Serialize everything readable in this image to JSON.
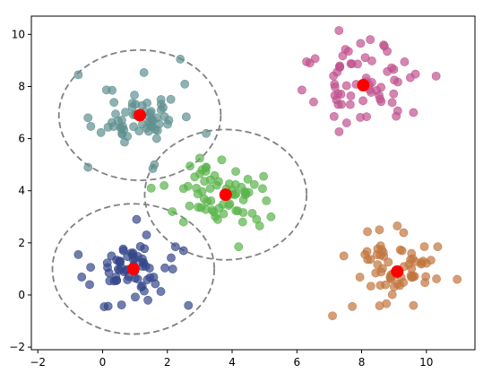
{
  "chart_data": {
    "type": "scatter",
    "title": "",
    "xlabel": "",
    "ylabel": "",
    "xlim": [
      -2.2,
      11.5
    ],
    "ylim": [
      -2.1,
      10.7
    ],
    "xticks": [
      "−2",
      "0",
      "2",
      "4",
      "6",
      "8",
      "10"
    ],
    "xtick_values": [
      -2,
      0,
      2,
      4,
      6,
      8,
      10
    ],
    "yticks": [
      "−2",
      "0",
      "2",
      "4",
      "6",
      "8",
      "10"
    ],
    "ytick_values": [
      -2,
      0,
      2,
      4,
      6,
      8,
      10
    ],
    "grid": false,
    "legend": "none",
    "clusters": [
      {
        "color": "#5f9090",
        "center": [
          1.15,
          6.9
        ],
        "spread": 0.6,
        "count": 60,
        "circle_radius": 2.5,
        "seed": 11,
        "points": [
          [
            -0.75,
            8.45
          ],
          [
            -0.45,
            6.8
          ],
          [
            -0.45,
            4.9
          ],
          [
            2.4,
            9.05
          ],
          [
            3.2,
            6.2
          ],
          [
            1.55,
            4.85
          ],
          [
            1.6,
            5.0
          ]
        ]
      },
      {
        "color": "#c0528f",
        "center": [
          8.05,
          8.05
        ],
        "spread": 0.7,
        "count": 60,
        "circle_radius": 0,
        "seed": 23,
        "points": [
          [
            7.3,
            10.15
          ],
          [
            6.3,
            8.95
          ],
          [
            6.4,
            8.9
          ],
          [
            10.3,
            8.4
          ],
          [
            8.7,
            9.55
          ],
          [
            9.6,
            7.0
          ],
          [
            7.15,
            6.85
          ]
        ]
      },
      {
        "color": "#5ab34a",
        "center": [
          3.8,
          3.85
        ],
        "spread": 0.55,
        "count": 60,
        "circle_radius": 2.5,
        "seed": 37,
        "points": [
          [
            1.5,
            4.1
          ],
          [
            1.9,
            4.2
          ],
          [
            2.7,
            4.95
          ],
          [
            3.0,
            5.25
          ],
          [
            2.5,
            2.8
          ],
          [
            2.15,
            3.2
          ],
          [
            4.2,
            1.85
          ],
          [
            4.85,
            2.65
          ],
          [
            5.2,
            3.0
          ]
        ]
      },
      {
        "color": "#34478a",
        "center": [
          0.95,
          1.0
        ],
        "spread": 0.6,
        "count": 60,
        "circle_radius": 2.5,
        "seed": 53,
        "points": [
          [
            -0.75,
            1.55
          ],
          [
            -0.4,
            0.4
          ],
          [
            0.05,
            -0.45
          ],
          [
            1.05,
            2.9
          ],
          [
            2.25,
            1.85
          ],
          [
            2.5,
            1.7
          ],
          [
            2.65,
            -0.4
          ]
        ]
      },
      {
        "color": "#c2763f",
        "center": [
          9.1,
          0.9
        ],
        "spread": 0.65,
        "count": 60,
        "circle_radius": 0,
        "seed": 71,
        "points": [
          [
            7.1,
            -0.8
          ],
          [
            7.45,
            1.5
          ],
          [
            10.95,
            0.6
          ],
          [
            10.35,
            1.85
          ],
          [
            9.1,
            2.65
          ],
          [
            9.6,
            -0.4
          ],
          [
            8.55,
            2.5
          ]
        ]
      }
    ],
    "style": {
      "point_color_alpha": 0.7,
      "centroid_color": "#ff0000",
      "circle_color": "#808080"
    }
  }
}
